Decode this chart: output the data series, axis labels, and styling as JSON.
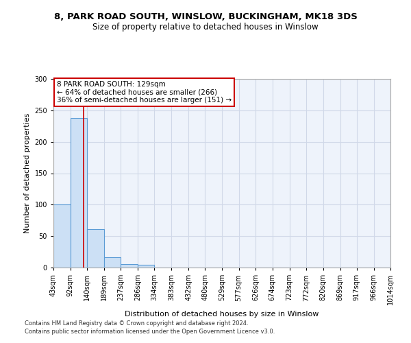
{
  "title1": "8, PARK ROAD SOUTH, WINSLOW, BUCKINGHAM, MK18 3DS",
  "title2": "Size of property relative to detached houses in Winslow",
  "xlabel": "Distribution of detached houses by size in Winslow",
  "ylabel": "Number of detached properties",
  "footer1": "Contains HM Land Registry data © Crown copyright and database right 2024.",
  "footer2": "Contains public sector information licensed under the Open Government Licence v3.0.",
  "annotation_line1": "8 PARK ROAD SOUTH: 129sqm",
  "annotation_line2": "← 64% of detached houses are smaller (266)",
  "annotation_line3": "36% of semi-detached houses are larger (151) →",
  "property_size": 129,
  "bar_color": "#cce0f5",
  "bar_edge_color": "#5b9bd5",
  "red_line_color": "#cc0000",
  "annotation_box_color": "#ffffff",
  "annotation_box_edge": "#cc0000",
  "bins": [
    43,
    92,
    140,
    189,
    237,
    286,
    334,
    383,
    432,
    480,
    529,
    577,
    626,
    674,
    723,
    772,
    820,
    869,
    917,
    966,
    1014
  ],
  "counts": [
    100,
    238,
    61,
    16,
    6,
    4,
    0,
    0,
    0,
    0,
    0,
    0,
    0,
    0,
    0,
    0,
    0,
    0,
    0,
    0
  ],
  "ylim": [
    0,
    300
  ],
  "yticks": [
    0,
    50,
    100,
    150,
    200,
    250,
    300
  ],
  "grid_color": "#d0d8e8",
  "bg_color": "#eef3fb",
  "title1_fontsize": 9.5,
  "title2_fontsize": 8.5,
  "ylabel_fontsize": 8,
  "xlabel_fontsize": 8,
  "footer_fontsize": 6,
  "tick_fontsize": 7
}
